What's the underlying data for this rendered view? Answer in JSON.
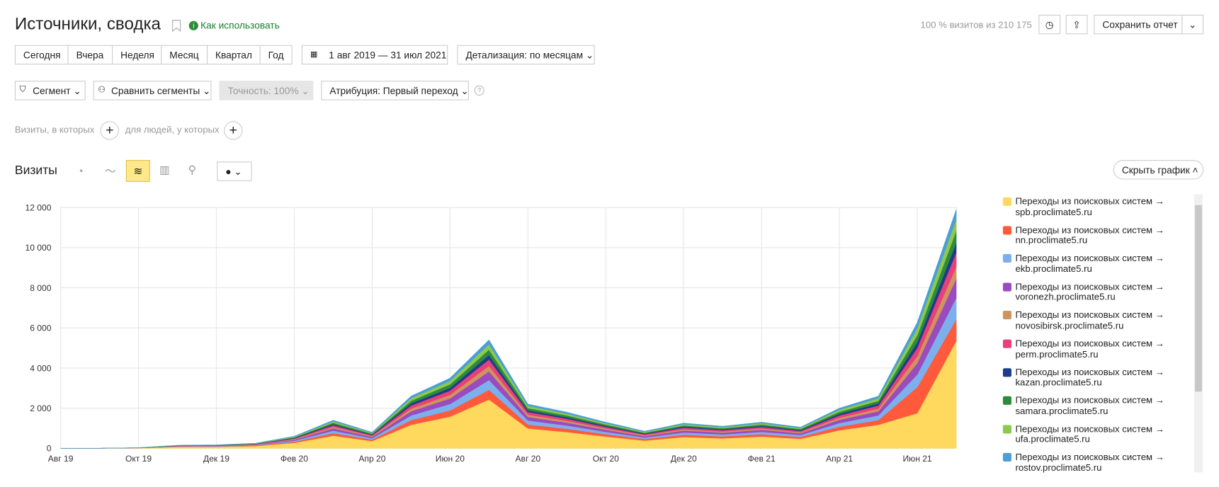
{
  "header": {
    "title": "Источники, сводка",
    "help_link": "Как использовать",
    "visits_info": "100 % визитов из 210 175",
    "save_button": "Сохранить отчет"
  },
  "period_buttons": [
    "Сегодня",
    "Вчера",
    "Неделя",
    "Месяц",
    "Квартал",
    "Год"
  ],
  "date_range": "1 авг 2019 — 31 июл 2021",
  "detail": "Детализация: по месяцам",
  "filters": {
    "segment": "Сегмент",
    "compare": "Сравнить сегменты",
    "accuracy": "Точность: 100%",
    "attribution": "Атрибуция: Первый переход"
  },
  "conditions": {
    "visits_label": "Визиты, в которых",
    "people_label": "для людей, у которых"
  },
  "chart_header": {
    "title": "Визиты",
    "hide_button": "Скрыть график"
  },
  "chart_data": {
    "type": "stacked_area",
    "categories": [
      "Авг 19",
      null,
      "Окт 19",
      null,
      "Дек 19",
      null,
      "Фев 20",
      null,
      "Апр 20",
      null,
      "Июн 20",
      null,
      "Авг 20",
      null,
      "Окт 20",
      null,
      "Дек 20",
      null,
      "Фев 21",
      null,
      "Апр 21",
      null,
      "Июн 21",
      null
    ],
    "ylim": [
      0,
      12000
    ],
    "yticks": [
      0,
      {
        "value": 2000,
        "label": "2 000"
      },
      {
        "value": 4000,
        "label": "4 000"
      },
      {
        "value": 6000,
        "label": "6 000"
      },
      {
        "value": 8000,
        "label": "8 000"
      },
      {
        "value": 10000,
        "label": "10 000"
      },
      {
        "value": 12000,
        "label": "12 000"
      }
    ],
    "grid": true,
    "series": [
      {
        "name": "Переходы из поисковых систем → spb.proclimate5.ru",
        "color": "#ffd85e",
        "values": [
          0,
          0,
          14,
          68,
          77,
          113,
          270,
          630,
          360,
          1170,
          1575,
          2430,
          990,
          810,
          585,
          383,
          563,
          495,
          585,
          473,
          900,
          1170,
          1750,
          5355
        ]
      },
      {
        "name": "Переходы из поисковых систем → nn.proclimate5.ru",
        "color": "#ff5a3c",
        "values": [
          0,
          0,
          3,
          14,
          15,
          23,
          54,
          126,
          72,
          234,
          315,
          486,
          198,
          162,
          117,
          77,
          113,
          99,
          117,
          95,
          180,
          234,
          1300,
          1071
        ]
      },
      {
        "name": "Переходы из поисковых систем → ekb.proclimate5.ru",
        "color": "#7cb0ec",
        "values": [
          0,
          0,
          3,
          14,
          15,
          23,
          54,
          126,
          72,
          234,
          315,
          486,
          198,
          162,
          117,
          77,
          113,
          99,
          117,
          95,
          180,
          234,
          630,
          1071
        ]
      },
      {
        "name": "Переходы из поисковых систем → voronezh.proclimate5.ru",
        "color": "#9a4bbd",
        "values": [
          0,
          0,
          2,
          12,
          14,
          20,
          48,
          112,
          64,
          208,
          280,
          432,
          176,
          144,
          104,
          68,
          100,
          88,
          104,
          84,
          160,
          208,
          560,
          952
        ]
      },
      {
        "name": "Переходы из поисковых систем → novosibirsk.proclimate5.ru",
        "color": "#d0935e",
        "values": [
          0,
          0,
          2,
          8,
          9,
          13,
          30,
          70,
          40,
          130,
          175,
          270,
          110,
          90,
          65,
          43,
          63,
          55,
          65,
          53,
          100,
          130,
          350,
          595
        ]
      },
      {
        "name": "Переходы из поисковых систем → perm.proclimate5.ru",
        "color": "#e8407a",
        "values": [
          0,
          0,
          2,
          9,
          10,
          15,
          36,
          84,
          48,
          156,
          210,
          324,
          132,
          108,
          78,
          51,
          75,
          66,
          78,
          63,
          120,
          156,
          420,
          714
        ]
      },
      {
        "name": "Переходы из поисковых систем → kazan.proclimate5.ru",
        "color": "#1f3c8c",
        "values": [
          0,
          0,
          1,
          6,
          7,
          10,
          24,
          56,
          32,
          104,
          140,
          216,
          88,
          72,
          52,
          34,
          50,
          44,
          52,
          42,
          80,
          104,
          280,
          476
        ]
      },
      {
        "name": "Переходы из поисковых систем → samara.proclimate5.ru",
        "color": "#2e8b3a",
        "values": [
          0,
          0,
          2,
          8,
          9,
          13,
          30,
          70,
          40,
          130,
          175,
          270,
          110,
          90,
          65,
          43,
          63,
          55,
          65,
          53,
          100,
          130,
          350,
          595
        ]
      },
      {
        "name": "Переходы из поисковых систем → ufa.proclimate5.ru",
        "color": "#8cc94e",
        "values": [
          0,
          0,
          2,
          8,
          9,
          13,
          30,
          70,
          40,
          130,
          175,
          270,
          110,
          90,
          65,
          43,
          63,
          55,
          65,
          53,
          100,
          130,
          350,
          595
        ]
      },
      {
        "name": "Переходы из поисковых систем → rostov.proclimate5.ru",
        "color": "#4b9ed8",
        "values": [
          0,
          0,
          1,
          6,
          7,
          10,
          24,
          56,
          32,
          104,
          140,
          216,
          88,
          72,
          52,
          34,
          50,
          44,
          52,
          42,
          80,
          104,
          280,
          476
        ]
      }
    ]
  }
}
